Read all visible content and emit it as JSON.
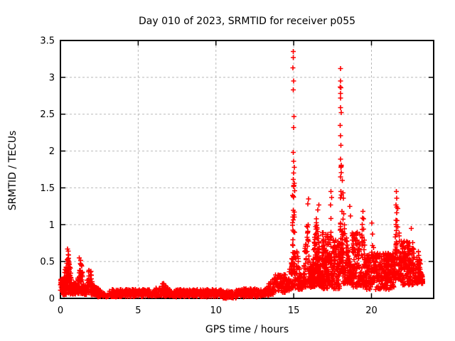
{
  "window": {
    "background": "#ffffff"
  },
  "chart_data": {
    "type": "scatter",
    "title": "Day 010 of 2023, SRMTID for receiver p055",
    "xlabel": "GPS time / hours",
    "ylabel": "SRMTID / TECUs",
    "xlim": [
      0,
      24
    ],
    "ylim": [
      0,
      3.5
    ],
    "xticks": [
      0,
      5,
      10,
      15,
      20
    ],
    "xtick_labels": [
      "0",
      "5",
      "10",
      "15",
      "20"
    ],
    "yticks": [
      0,
      0.5,
      1,
      1.5,
      2,
      2.5,
      3,
      3.5
    ],
    "ytick_labels": [
      "0",
      "0.5",
      "1",
      "1.5",
      "2",
      "2.5",
      "3",
      "3.5"
    ],
    "grid": true,
    "legend_position": "none",
    "marker": {
      "shape": "plus",
      "color": "#ff0000",
      "size": 7,
      "stroke_width": 1.6
    },
    "colors": {
      "grid": "#b9b9b9",
      "axis": "#000000",
      "background": "#ffffff"
    },
    "description": "Dense time series of SRMTID values: quiet baseline ~0.05 TECU from 02-13h, activity bursts 0-2h (up to 0.67), rise after 13h, large spikes near 15h (max 3.35) and 18h (max 3.12), moderate wave activity 16-23h ending ~23.3h",
    "clusters": [
      {
        "x0": 0.0,
        "x1": 0.17,
        "y0": 0.1,
        "y1": 0.28,
        "n": 30,
        "p": "flat"
      },
      {
        "x0": 0.15,
        "x1": 0.8,
        "y0": 0.05,
        "y1": 0.66,
        "n": 130,
        "p": "peak"
      },
      {
        "x0": 0.8,
        "x1": 1.05,
        "y0": 0.05,
        "y1": 0.22,
        "n": 35,
        "p": "flat"
      },
      {
        "x0": 1.05,
        "x1": 1.55,
        "y0": 0.06,
        "y1": 0.55,
        "n": 90,
        "p": "peak"
      },
      {
        "x0": 1.55,
        "x1": 2.25,
        "y0": 0.05,
        "y1": 0.43,
        "n": 90,
        "p": "peak"
      },
      {
        "x0": 2.25,
        "x1": 3.1,
        "y0": 0.02,
        "y1": 0.16,
        "n": 70,
        "p": "fall"
      },
      {
        "x0": 3.1,
        "x1": 5.8,
        "y0": 0.02,
        "y1": 0.12,
        "n": 230,
        "p": "flat"
      },
      {
        "x0": 5.8,
        "x1": 7.3,
        "y0": 0.03,
        "y1": 0.22,
        "n": 130,
        "p": "peak"
      },
      {
        "x0": 7.3,
        "x1": 10.4,
        "y0": 0.02,
        "y1": 0.12,
        "n": 260,
        "p": "flat"
      },
      {
        "x0": 10.4,
        "x1": 11.3,
        "y0": 0.0,
        "y1": 0.1,
        "n": 70,
        "p": "flat"
      },
      {
        "x0": 11.3,
        "x1": 12.9,
        "y0": 0.02,
        "y1": 0.13,
        "n": 130,
        "p": "flat"
      },
      {
        "x0": 12.9,
        "x1": 13.7,
        "y0": 0.04,
        "y1": 0.27,
        "n": 80,
        "p": "rise"
      },
      {
        "x0": 13.7,
        "x1": 14.55,
        "y0": 0.08,
        "y1": 0.33,
        "n": 90,
        "p": "flat"
      },
      {
        "x0": 14.55,
        "x1": 14.85,
        "y0": 0.1,
        "y1": 0.55,
        "n": 40,
        "p": "rise"
      },
      {
        "x0": 14.85,
        "x1": 15.12,
        "y0": 0.13,
        "y1": 1.95,
        "n": 70,
        "p": "peak"
      },
      {
        "x0": 15.12,
        "x1": 15.6,
        "y0": 0.12,
        "y1": 0.75,
        "n": 50,
        "p": "fall"
      },
      {
        "x0": 15.6,
        "x1": 16.15,
        "y0": 0.15,
        "y1": 1.15,
        "n": 90,
        "p": "peak"
      },
      {
        "x0": 16.15,
        "x1": 16.8,
        "y0": 0.15,
        "y1": 1.12,
        "n": 170,
        "p": "peak"
      },
      {
        "x0": 16.8,
        "x1": 17.25,
        "y0": 0.12,
        "y1": 0.9,
        "n": 110,
        "p": "flat"
      },
      {
        "x0": 17.25,
        "x1": 17.5,
        "y0": 0.15,
        "y1": 1.2,
        "n": 50,
        "p": "peak"
      },
      {
        "x0": 17.5,
        "x1": 17.95,
        "y0": 0.12,
        "y1": 0.8,
        "n": 90,
        "p": "flat"
      },
      {
        "x0": 17.95,
        "x1": 18.17,
        "y0": 0.3,
        "y1": 1.9,
        "n": 55,
        "p": "peak"
      },
      {
        "x0": 18.17,
        "x1": 18.75,
        "y0": 0.2,
        "y1": 1.25,
        "n": 110,
        "p": "fall"
      },
      {
        "x0": 18.75,
        "x1": 19.25,
        "y0": 0.15,
        "y1": 0.9,
        "n": 90,
        "p": "flat"
      },
      {
        "x0": 19.25,
        "x1": 19.65,
        "y0": 0.15,
        "y1": 1.15,
        "n": 70,
        "p": "peak"
      },
      {
        "x0": 19.65,
        "x1": 19.95,
        "y0": 0.12,
        "y1": 0.6,
        "n": 50,
        "p": "flat"
      },
      {
        "x0": 19.95,
        "x1": 20.2,
        "y0": 0.2,
        "y1": 1.05,
        "n": 45,
        "p": "peak"
      },
      {
        "x0": 20.2,
        "x1": 21.45,
        "y0": 0.12,
        "y1": 0.62,
        "n": 210,
        "p": "flat"
      },
      {
        "x0": 21.45,
        "x1": 21.9,
        "y0": 0.25,
        "y1": 1.45,
        "n": 80,
        "p": "peak"
      },
      {
        "x0": 21.9,
        "x1": 22.75,
        "y0": 0.18,
        "y1": 0.78,
        "n": 150,
        "p": "flat"
      },
      {
        "x0": 22.75,
        "x1": 23.3,
        "y0": 0.2,
        "y1": 0.7,
        "n": 80,
        "p": "peak"
      }
    ],
    "spike_points": [
      [
        14.96,
        3.35
      ],
      [
        14.97,
        3.27
      ],
      [
        14.95,
        3.13
      ],
      [
        15.0,
        2.95
      ],
      [
        14.98,
        2.83
      ],
      [
        15.02,
        2.47
      ],
      [
        15.0,
        2.32
      ],
      [
        14.97,
        1.98
      ],
      [
        15.0,
        1.86
      ],
      [
        15.03,
        1.78
      ],
      [
        14.99,
        1.7
      ],
      [
        15.04,
        1.56
      ],
      [
        15.0,
        1.52
      ],
      [
        15.06,
        1.46
      ],
      [
        14.93,
        1.4
      ],
      [
        18.0,
        3.12
      ],
      [
        18.02,
        2.95
      ],
      [
        17.99,
        2.87
      ],
      [
        18.04,
        2.86
      ],
      [
        18.0,
        2.78
      ],
      [
        18.02,
        2.72
      ],
      [
        18.0,
        2.59
      ],
      [
        18.05,
        2.52
      ],
      [
        17.98,
        2.35
      ],
      [
        18.01,
        2.21
      ],
      [
        18.03,
        2.08
      ],
      [
        18.0,
        1.89
      ],
      [
        18.05,
        1.81
      ],
      [
        18.04,
        1.78
      ],
      [
        18.0,
        1.65
      ],
      [
        18.12,
        1.6
      ],
      [
        18.17,
        1.43
      ],
      [
        18.2,
        1.36
      ],
      [
        15.95,
        1.35
      ],
      [
        15.9,
        1.28
      ],
      [
        16.62,
        1.27
      ],
      [
        16.55,
        1.2
      ],
      [
        17.4,
        1.45
      ],
      [
        17.43,
        1.37
      ],
      [
        17.38,
        1.27
      ],
      [
        18.6,
        1.25
      ],
      [
        18.65,
        1.12
      ],
      [
        19.45,
        1.18
      ],
      [
        19.5,
        1.08
      ],
      [
        20.02,
        1.02
      ],
      [
        21.6,
        1.45
      ],
      [
        21.63,
        1.36
      ],
      [
        21.57,
        1.27
      ],
      [
        22.55,
        0.95
      ],
      [
        0.45,
        0.67
      ],
      [
        0.5,
        0.64
      ],
      [
        1.22,
        0.55
      ]
    ]
  }
}
